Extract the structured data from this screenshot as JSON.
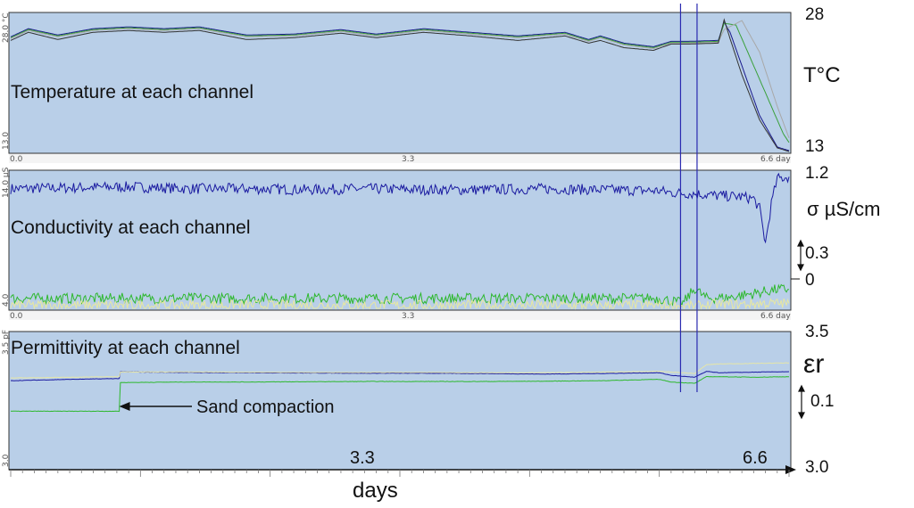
{
  "chart_data": [
    {
      "type": "line",
      "title": "Temperature at each channel",
      "unit_label": "T°C",
      "ylim": [
        13,
        28
      ],
      "y_left_top": "28.0 °C",
      "y_left_bottom": "13.0",
      "y_right_top": "28",
      "y_right_bottom": "13",
      "xlim": [
        0,
        6.6
      ],
      "x_ticks": [
        "0.0",
        "3.3",
        "6.6 day"
      ],
      "series": [
        {
          "color": "#1a1a8c",
          "x": [
            0,
            0.15,
            0.4,
            0.7,
            1.0,
            1.3,
            1.6,
            2.0,
            2.4,
            2.8,
            3.1,
            3.5,
            3.9,
            4.3,
            4.7,
            4.9,
            5.0,
            5.2,
            5.45,
            5.6,
            5.75,
            6.0,
            6.05,
            6.1,
            6.2,
            6.35,
            6.5,
            6.6
          ],
          "y": [
            25.7,
            26.6,
            25.9,
            26.6,
            26.8,
            26.6,
            26.8,
            25.9,
            26.0,
            26.5,
            26.0,
            26.6,
            26.2,
            25.8,
            26.2,
            25.4,
            25.8,
            25.0,
            24.6,
            25.2,
            25.2,
            25.3,
            27.3,
            26.2,
            22.5,
            17.0,
            13.5,
            13.1
          ]
        },
        {
          "color": "#3aa03a",
          "x": [
            0,
            0.15,
            0.4,
            0.7,
            1.0,
            1.3,
            1.6,
            2.0,
            2.4,
            2.8,
            3.1,
            3.5,
            3.9,
            4.3,
            4.7,
            4.9,
            5.0,
            5.2,
            5.45,
            5.6,
            5.75,
            6.0,
            6.05,
            6.15,
            6.25,
            6.4,
            6.55,
            6.6
          ],
          "y": [
            25.6,
            26.5,
            25.8,
            26.5,
            26.7,
            26.5,
            26.7,
            25.8,
            25.9,
            26.4,
            25.9,
            26.5,
            26.1,
            25.7,
            26.1,
            25.3,
            25.7,
            24.9,
            24.5,
            25.1,
            25.1,
            25.2,
            27.2,
            27.0,
            24.0,
            19.5,
            15.0,
            14.0
          ]
        },
        {
          "color": "#a8a8a8",
          "x": [
            0,
            0.15,
            0.4,
            0.7,
            1.0,
            1.3,
            1.6,
            2.0,
            2.4,
            2.8,
            3.1,
            3.5,
            3.9,
            4.3,
            4.7,
            4.9,
            5.0,
            5.2,
            5.45,
            5.6,
            5.75,
            6.0,
            6.05,
            6.2,
            6.35,
            6.5,
            6.6
          ],
          "y": [
            25.5,
            26.4,
            25.7,
            26.4,
            26.6,
            26.4,
            26.6,
            25.7,
            25.8,
            26.3,
            25.8,
            26.4,
            26.0,
            25.6,
            26.0,
            25.2,
            25.6,
            24.8,
            24.4,
            25.0,
            25.0,
            25.1,
            26.5,
            27.5,
            24.0,
            18.0,
            14.5
          ]
        },
        {
          "color": "#333333",
          "x": [
            0,
            0.15,
            0.4,
            0.7,
            1.0,
            1.3,
            1.6,
            2.0,
            2.4,
            2.8,
            3.1,
            3.5,
            3.9,
            4.3,
            4.7,
            4.9,
            5.0,
            5.2,
            5.45,
            5.6,
            5.75,
            6.0,
            6.05,
            6.1,
            6.2,
            6.35,
            6.5,
            6.6
          ],
          "y": [
            25.3,
            26.2,
            25.4,
            26.2,
            26.4,
            26.2,
            26.4,
            25.4,
            25.6,
            26.1,
            25.6,
            26.2,
            25.8,
            25.3,
            25.8,
            25.0,
            25.3,
            24.5,
            24.2,
            24.9,
            24.9,
            25.0,
            27.6,
            25.5,
            21.5,
            16.5,
            13.4,
            13.0
          ]
        }
      ]
    },
    {
      "type": "line",
      "title": "Conductivity at each channel",
      "unit_label": "σ µS/cm",
      "ylim": [
        -0.1,
        1.25
      ],
      "y_left_top": "14.0 µS",
      "y_left_bottom": "4.0",
      "y_right_top": "1.2",
      "y_right_mid": "0.3",
      "y_right_bottom": "0",
      "xlim": [
        0,
        6.6
      ],
      "x_ticks": [
        "0.0",
        "3.3",
        "6.6 day"
      ],
      "series": [
        {
          "color": "#1a1aa0",
          "x": [
            0,
            0.5,
            1.0,
            1.5,
            2.0,
            2.5,
            3.0,
            3.5,
            4.0,
            4.5,
            5.0,
            5.5,
            5.6,
            5.8,
            6.0,
            6.2,
            6.3,
            6.35,
            6.4,
            6.45,
            6.5,
            6.6
          ],
          "y": [
            1.1,
            1.11,
            1.12,
            1.1,
            1.1,
            1.09,
            1.1,
            1.09,
            1.09,
            1.1,
            1.09,
            1.08,
            1.06,
            1.05,
            1.03,
            1.02,
            1.0,
            0.9,
            0.55,
            0.95,
            1.2,
            1.22
          ]
        },
        {
          "color": "#2db82d",
          "x": [
            0,
            0.5,
            1.0,
            1.5,
            2.0,
            2.5,
            3.0,
            3.5,
            4.0,
            4.5,
            5.0,
            5.5,
            5.7,
            5.8,
            5.9,
            6.1,
            6.3,
            6.5,
            6.6
          ],
          "y": [
            0.0,
            0.0,
            0.0,
            0.0,
            0.0,
            0.0,
            0.0,
            0.0,
            0.0,
            0.0,
            0.0,
            0.0,
            -0.05,
            0.1,
            0.0,
            0.01,
            0.05,
            0.09,
            0.09
          ]
        },
        {
          "color": "#e8e8a0",
          "x": [
            0,
            0.5,
            1.0,
            1.5,
            2.0,
            2.5,
            3.0,
            3.5,
            4.0,
            4.5,
            5.0,
            5.5,
            5.8,
            6.0,
            6.2,
            6.4,
            6.6
          ],
          "y": [
            -0.07,
            -0.07,
            -0.07,
            -0.07,
            -0.07,
            -0.07,
            -0.07,
            -0.07,
            -0.07,
            -0.07,
            -0.07,
            -0.07,
            -0.08,
            -0.06,
            -0.06,
            -0.05,
            -0.05
          ]
        }
      ]
    },
    {
      "type": "line",
      "title": "Permittivity at each channel",
      "unit_label": "εr",
      "ylim": [
        3.0,
        3.5
      ],
      "y_left_top": "3.5 pF",
      "y_left_bottom": "3.0",
      "y_right_top": "3.5",
      "y_right_mid": "0.1",
      "y_right_bottom": "3.0",
      "xlim": [
        0,
        6.6
      ],
      "x_ticks_big": [
        "3.3",
        "6.6"
      ],
      "xlabel": "days",
      "annotation": "Sand compaction",
      "annotation_x": 0.92,
      "series": [
        {
          "color": "#1a1aa0",
          "x": [
            0,
            0.5,
            0.92,
            0.93,
            1.5,
            2.0,
            2.5,
            3.0,
            3.5,
            4.0,
            4.5,
            5.0,
            5.5,
            5.6,
            5.8,
            5.9,
            6.0,
            6.3,
            6.6
          ],
          "y": [
            3.325,
            3.33,
            3.333,
            3.358,
            3.356,
            3.355,
            3.354,
            3.353,
            3.353,
            3.352,
            3.35,
            3.352,
            3.355,
            3.345,
            3.338,
            3.36,
            3.355,
            3.357,
            3.359
          ]
        },
        {
          "color": "#2db82d",
          "x": [
            0,
            0.5,
            0.92,
            0.93,
            1.5,
            2.0,
            2.5,
            3.0,
            3.5,
            4.0,
            4.5,
            5.0,
            5.5,
            5.6,
            5.8,
            5.9,
            6.0,
            6.3,
            6.6
          ],
          "y": [
            3.21,
            3.21,
            3.21,
            3.318,
            3.32,
            3.32,
            3.321,
            3.322,
            3.322,
            3.322,
            3.323,
            3.325,
            3.33,
            3.32,
            3.315,
            3.34,
            3.34,
            3.338,
            3.34
          ]
        },
        {
          "color": "#e6e6a8",
          "x": [
            0,
            0.5,
            0.92,
            0.93,
            1.5,
            2.0,
            2.5,
            3.0,
            3.5,
            4.0,
            4.5,
            5.0,
            5.5,
            5.8,
            5.9,
            6.0,
            6.3,
            6.6
          ],
          "y": [
            3.335,
            3.338,
            3.34,
            3.358,
            3.358,
            3.357,
            3.356,
            3.356,
            3.356,
            3.355,
            3.355,
            3.357,
            3.36,
            3.352,
            3.385,
            3.388,
            3.39,
            3.392
          ]
        }
      ]
    }
  ],
  "cursors_x": [
    5.68,
    5.82
  ],
  "cursor_color": "#2a2ab0"
}
